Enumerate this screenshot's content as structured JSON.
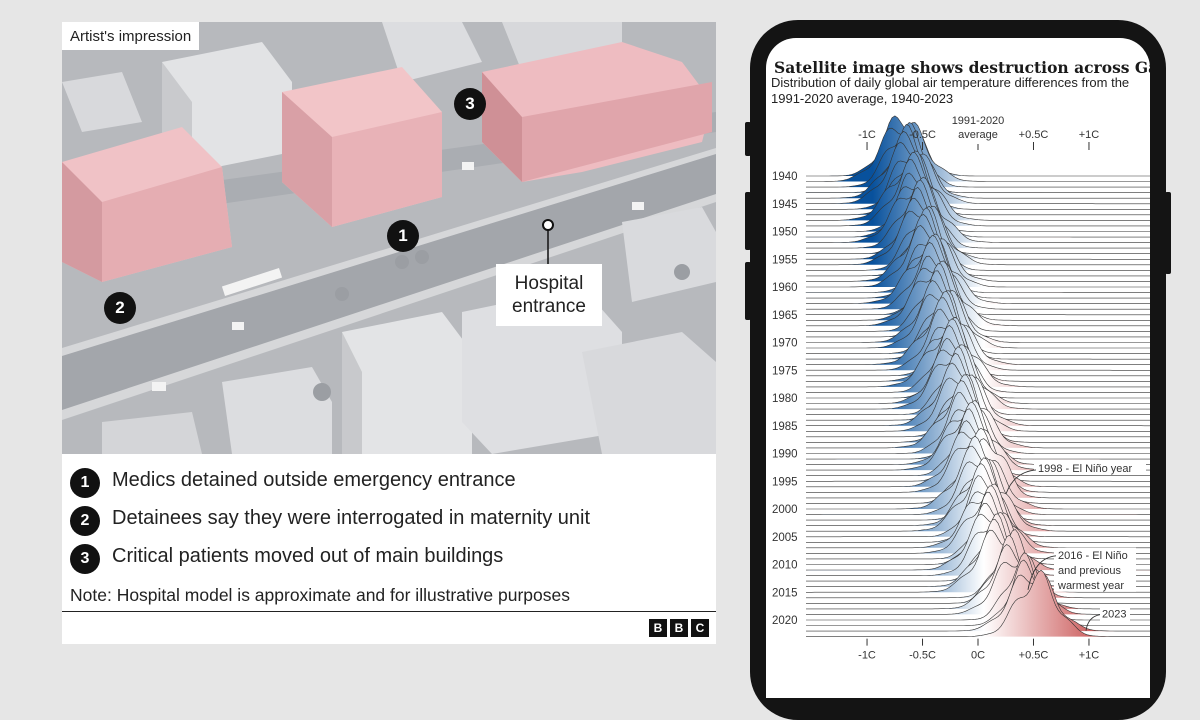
{
  "image": {
    "tag": "Artist's impression",
    "hospital_label": "Hospital entrance",
    "markers": [
      "1",
      "2",
      "3"
    ]
  },
  "legend": {
    "items": [
      {
        "num": "1",
        "text": "Medics detained outside emergency entrance"
      },
      {
        "num": "2",
        "text": "Detainees say they were interrogated in maternity unit"
      },
      {
        "num": "3",
        "text": "Critical patients moved out of main buildings"
      }
    ],
    "note": "Note:  Hospital model is approximate and for illustrative purposes",
    "brand": [
      "B",
      "B",
      "C"
    ]
  },
  "phone": {
    "headline": "Satellite image shows destruction across Gaza",
    "chart_data": {
      "type": "ridgeline",
      "subtitle": "Distribution of daily global air temperature differences from the 1991-2020 average, 1940-2023",
      "top_ticks": [
        "-1C",
        "-0.5C",
        "1991-2020 average",
        "+0.5C",
        "+1C"
      ],
      "bottom_ticks": [
        "-1C",
        "-0.5C",
        "0C",
        "+0.5C",
        "+1C"
      ],
      "tick_values": [
        -1,
        -0.5,
        0,
        0.5,
        1
      ],
      "xlim": [
        -1.55,
        1.55
      ],
      "year_labels": [
        1940,
        1945,
        1950,
        1955,
        1960,
        1965,
        1970,
        1975,
        1980,
        1985,
        1990,
        1995,
        2000,
        2005,
        2010,
        2015,
        2020
      ],
      "years": [
        1940,
        2023
      ],
      "color_scale": {
        "cold": "#08519c",
        "neutral": "#ffffff",
        "warm": "#b30d0d"
      },
      "annotations": [
        {
          "year": 1998,
          "text": "1998 - El Niño year"
        },
        {
          "year": 2016,
          "lines": [
            "2016 - El Niño",
            "and previous",
            "warmest year"
          ]
        },
        {
          "year": 2023,
          "text": "2023"
        }
      ]
    }
  }
}
